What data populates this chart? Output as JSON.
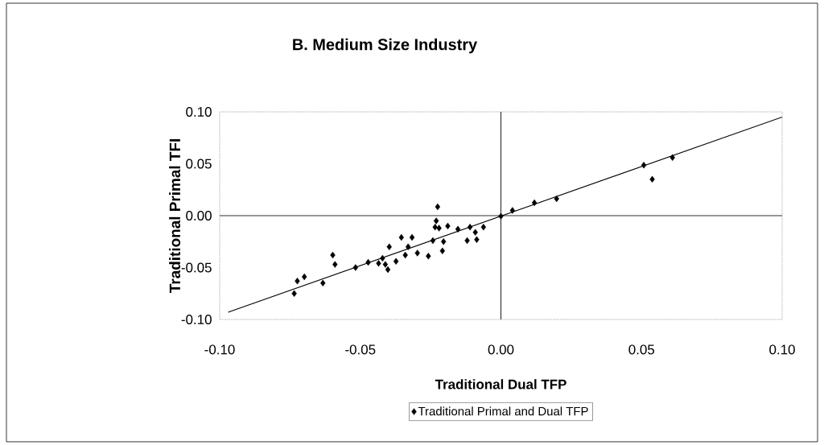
{
  "chart_data": {
    "type": "scatter",
    "title": "B. Medium Size Industry",
    "xlabel": "Traditional Dual TFP",
    "ylabel": "Traditional Primal TFI",
    "xlim": [
      -0.1,
      0.1
    ],
    "ylim": [
      -0.1,
      0.1
    ],
    "xticks": [
      {
        "value": -0.1,
        "label": "-0.10"
      },
      {
        "value": -0.05,
        "label": "-0.05"
      },
      {
        "value": 0,
        "label": "0.00"
      },
      {
        "value": 0.05,
        "label": "0.05"
      },
      {
        "value": 0.1,
        "label": "0.10"
      }
    ],
    "yticks": [
      {
        "value": -0.1,
        "label": "-0.10"
      },
      {
        "value": -0.05,
        "label": "-0.05"
      },
      {
        "value": 0,
        "label": "0.00"
      },
      {
        "value": 0.05,
        "label": "0.05"
      },
      {
        "value": 0.1,
        "label": "0.10"
      }
    ],
    "legend": "bottom",
    "marker": "diamond",
    "grid": false,
    "ref_lines": [
      {
        "axis": "x",
        "value": 0,
        "color": "#000000"
      },
      {
        "axis": "y",
        "value": 0,
        "color": "#1a1a1a"
      }
    ],
    "series": [
      {
        "name": "Traditional Primal and Dual TFP",
        "color": "#000000",
        "x": [
          -0.0735,
          -0.0724,
          -0.0699,
          -0.0633,
          -0.0598,
          -0.059,
          -0.0517,
          -0.0472,
          -0.0435,
          -0.0421,
          -0.0411,
          -0.0402,
          -0.0397,
          -0.0373,
          -0.0354,
          -0.034,
          -0.033,
          -0.0316,
          -0.0297,
          -0.0258,
          -0.0242,
          -0.0225,
          -0.023,
          -0.0234,
          -0.022,
          -0.0204,
          -0.0208,
          -0.0189,
          -0.0153,
          -0.012,
          -0.011,
          -0.0091,
          -0.0086,
          -0.0062,
          0.0,
          0.0041,
          0.0119,
          0.0198,
          0.0508,
          0.0538,
          0.061
        ],
        "values": [
          -0.075,
          -0.063,
          -0.059,
          -0.065,
          -0.038,
          -0.047,
          -0.05,
          -0.045,
          -0.046,
          -0.041,
          -0.047,
          -0.052,
          -0.03,
          -0.044,
          -0.021,
          -0.038,
          -0.03,
          -0.021,
          -0.036,
          -0.039,
          -0.024,
          0.0085,
          -0.005,
          -0.011,
          -0.012,
          -0.025,
          -0.034,
          -0.01,
          -0.013,
          -0.024,
          -0.011,
          -0.016,
          -0.023,
          -0.011,
          -0.0005,
          0.005,
          0.0124,
          0.0163,
          0.0487,
          0.035,
          0.056
        ]
      },
      {
        "type": "line",
        "marker": "none",
        "color": "#000000",
        "x": [
          -0.097,
          0.1
        ],
        "values": [
          -0.093,
          0.095
        ]
      }
    ]
  }
}
